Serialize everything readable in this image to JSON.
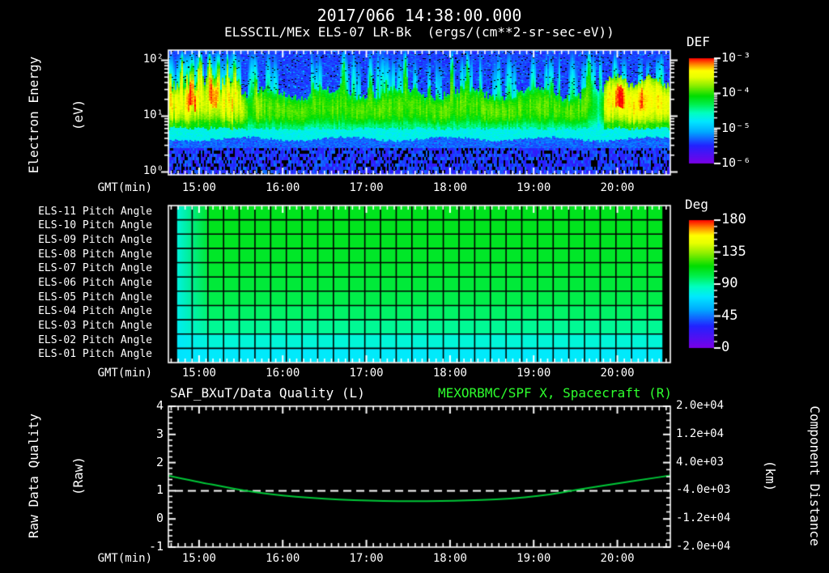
{
  "header": {
    "title": "2017/066 14:38:00.000",
    "subtitle": "ELSSCIL/MEx ELS-07 LR-Bk  (ergs/(cm**2-sr-sec-eV))"
  },
  "time_axis": {
    "label": "GMT(min)",
    "hour_labels": [
      "15:00",
      "16:00",
      "17:00",
      "18:00",
      "19:00",
      "20:00"
    ],
    "start_hour_decimal": 14.6333,
    "end_hour_decimal": 20.6333,
    "minor_tick_minutes": 5
  },
  "colors": {
    "background": "#000000",
    "text": "#ffffff",
    "title_right_green": "#2eff2e",
    "curve_green": "#00c838",
    "dashed_line": "#ffffff",
    "rainbow_stops": [
      [
        0,
        "#7a00e6"
      ],
      [
        0.17,
        "#2222ff"
      ],
      [
        0.3,
        "#00aaff"
      ],
      [
        0.4,
        "#00e8ff"
      ],
      [
        0.48,
        "#00ffc0"
      ],
      [
        0.56,
        "#00f050"
      ],
      [
        0.64,
        "#00dd00"
      ],
      [
        0.74,
        "#8cee00"
      ],
      [
        0.82,
        "#e8ff00"
      ],
      [
        0.88,
        "#ffff00"
      ],
      [
        0.94,
        "#ff8800"
      ],
      [
        1,
        "#ff0000"
      ]
    ]
  },
  "chart_data": [
    {
      "id": "electron_energy_spectrogram",
      "type": "heatmap",
      "title": "2017/066 14:38:00.000",
      "subtitle": "ELSSCIL/MEx ELS-07 LR-Bk  (ergs/(cm**2-sr-sec-eV))",
      "xlabel": "GMT(min)",
      "ylabel": [
        "Electron Energy",
        "(eV)"
      ],
      "y_scale": "log",
      "y_tick_labels": [
        "10²",
        "10¹",
        "10⁰"
      ],
      "y_range_ev": [
        0.9,
        210
      ],
      "colorbar": {
        "label": "DEF",
        "units": "ergs/(cm**2-sr-sec-eV)",
        "tick_labels": [
          "10⁻³",
          "10⁻⁴",
          "10⁻⁵",
          "10⁻⁶"
        ],
        "log10_range": [
          -6,
          -3
        ]
      },
      "structure": {
        "seed": 20170666,
        "band_top_frac": 0.345,
        "band_bottom_frac": 0.625,
        "cyan_band_bottom_frac": 0.71,
        "noise_top_frac": 0.78,
        "base_intensity": 0.64,
        "left_zone": {
          "end_u": 0.145,
          "intensity": 0.78
        },
        "right_zone": {
          "start_u": 0.868,
          "intensity": 0.8,
          "band_top_frac": 0.24
        },
        "tall_streaks_u": [
          0.028,
          0.047,
          0.063,
          0.082,
          0.1,
          0.118,
          0.132,
          0.35,
          0.472,
          0.565,
          0.596,
          0.838
        ],
        "dark_gaps_u": [
          0.158,
          0.855
        ],
        "streak_count": 90
      }
    },
    {
      "id": "pitch_angle_grid",
      "type": "heatmap",
      "xlabel": "GMT(min)",
      "rows": [
        {
          "label": "ELS-11 Pitch Angle",
          "deg": 110
        },
        {
          "label": "ELS-10 Pitch Angle",
          "deg": 110
        },
        {
          "label": "ELS-09 Pitch Angle",
          "deg": 109
        },
        {
          "label": "ELS-08 Pitch Angle",
          "deg": 108
        },
        {
          "label": "ELS-07 Pitch Angle",
          "deg": 107
        },
        {
          "label": "ELS-06 Pitch Angle",
          "deg": 105
        },
        {
          "label": "ELS-05 Pitch Angle",
          "deg": 102
        },
        {
          "label": "ELS-04 Pitch Angle",
          "deg": 98
        },
        {
          "label": "ELS-03 Pitch Angle",
          "deg": 92
        },
        {
          "label": "ELS-02 Pitch Angle",
          "deg": 81
        },
        {
          "label": "ELS-01 Pitch Angle",
          "deg": 73
        }
      ],
      "left_edge_deg": 70,
      "columns": 31,
      "colorbar": {
        "label": "Deg",
        "tick_labels": [
          "180",
          "135",
          "90",
          "45",
          "0"
        ],
        "range_deg": [
          0,
          180
        ]
      }
    },
    {
      "id": "quality_and_distance",
      "type": "line",
      "title_left": "SAF_BXuT/Data Quality (L)",
      "title_right": "MEXORBMC/SPF X, Spacecraft (R)",
      "xlabel": "GMT(min)",
      "ylabel_left": [
        "Raw Data Quality",
        "(Raw)"
      ],
      "ylabel_right": [
        "Component Distance",
        "(km)"
      ],
      "ylim_left": [
        -1,
        4
      ],
      "y_tick_labels_left": [
        "4",
        "3",
        "2",
        "1",
        "0",
        "-1"
      ],
      "ylim_right": [
        -20000,
        20000
      ],
      "y_tick_labels_right": [
        "2.0e+04",
        "1.2e+04",
        "4.0e+03",
        "-4.0e+03",
        "-1.2e+04",
        "-2.0e+04"
      ],
      "series": [
        {
          "name": "SAF_BXuT/Data Quality (L)",
          "axis": "left",
          "style": "dashed",
          "color": "#ffffff",
          "points": [
            [
              14.633,
              1
            ],
            [
              20.633,
              1
            ]
          ]
        },
        {
          "name": "MEXORBMC/SPF X, Spacecraft (R)",
          "axis": "right",
          "style": "solid",
          "color": "#00c838",
          "points": [
            [
              14.633,
              320
            ],
            [
              15.0,
              -1520
            ],
            [
              15.3,
              -2880
            ],
            [
              15.55,
              -4000
            ],
            [
              15.85,
              -4960
            ],
            [
              16.15,
              -5680
            ],
            [
              16.5,
              -6280
            ],
            [
              16.85,
              -6680
            ],
            [
              17.2,
              -6900
            ],
            [
              17.55,
              -6980
            ],
            [
              17.9,
              -6920
            ],
            [
              18.2,
              -6760
            ],
            [
              18.55,
              -6440
            ],
            [
              18.9,
              -5920
            ],
            [
              19.2,
              -5040
            ],
            [
              19.45,
              -4000
            ],
            [
              19.7,
              -3040
            ],
            [
              20.0,
              -1920
            ],
            [
              20.33,
              -720
            ],
            [
              20.633,
              320
            ]
          ]
        }
      ]
    }
  ]
}
